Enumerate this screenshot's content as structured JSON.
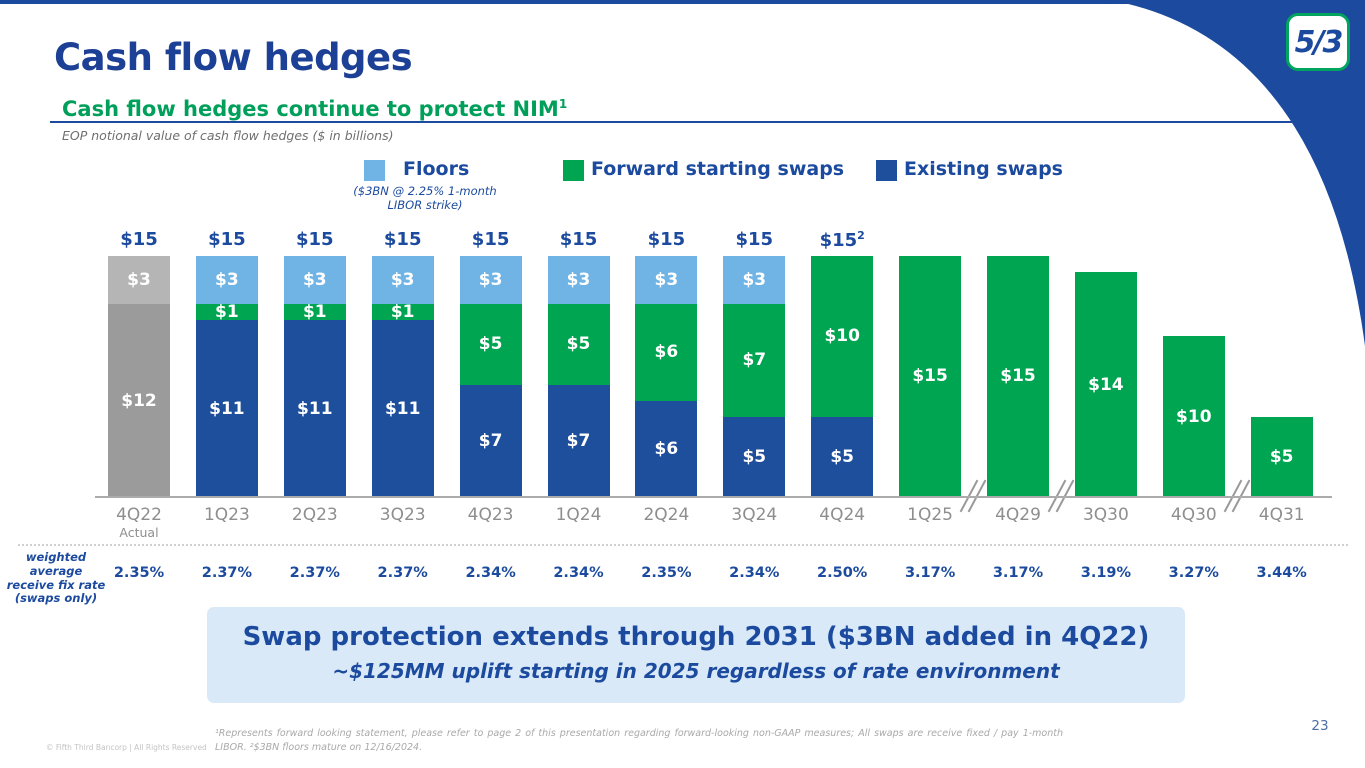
{
  "slide": {
    "page_number": "23",
    "copyright": "© Fifth Third Bancorp | All Rights Reserved"
  },
  "logo": {
    "text": "5/3"
  },
  "header": {
    "title": "Cash flow hedges",
    "subtitle": "Cash flow hedges continue to protect NIM",
    "subtitle_sup": "1",
    "note": "EOP notional value of cash flow hedges ($ in billions)"
  },
  "legend": {
    "items": [
      {
        "label": "Floors",
        "color": "#6fb4e5",
        "note": "($3BN @ 2.25% 1-month LIBOR strike)"
      },
      {
        "label": "Forward starting swaps",
        "color": "#00a551"
      },
      {
        "label": "Existing swaps",
        "color": "#1e4f9d"
      }
    ]
  },
  "chart_data": {
    "type": "bar",
    "stacked": true,
    "title": "EOP notional value of cash flow hedges ($ in billions)",
    "value_prefix": "$",
    "ylim": [
      0,
      15
    ],
    "grid": false,
    "legend_position": "top",
    "categories": [
      {
        "label": "4Q22",
        "sub": "Actual"
      },
      {
        "label": "1Q23"
      },
      {
        "label": "2Q23"
      },
      {
        "label": "3Q23"
      },
      {
        "label": "4Q23"
      },
      {
        "label": "1Q24"
      },
      {
        "label": "2Q24"
      },
      {
        "label": "3Q24"
      },
      {
        "label": "4Q24"
      },
      {
        "label": "1Q25"
      },
      {
        "label": "4Q29"
      },
      {
        "label": "3Q30"
      },
      {
        "label": "4Q30"
      },
      {
        "label": "4Q31"
      }
    ],
    "series": [
      {
        "name": "Existing swaps (4Q22 actual)",
        "color": "#9b9b9b",
        "values": [
          12,
          0,
          0,
          0,
          0,
          0,
          0,
          0,
          0,
          0,
          0,
          0,
          0,
          0
        ]
      },
      {
        "name": "Existing swaps",
        "color": "#1e4f9d",
        "values": [
          0,
          11,
          11,
          11,
          7,
          7,
          6,
          5,
          5,
          0,
          0,
          0,
          0,
          0
        ]
      },
      {
        "name": "Forward starting swaps",
        "color": "#00a551",
        "values": [
          0,
          1,
          1,
          1,
          5,
          5,
          6,
          7,
          10,
          15,
          15,
          14,
          10,
          5
        ]
      },
      {
        "name": "Floors (4Q22 actual)",
        "color": "#b5b5b5",
        "values": [
          3,
          0,
          0,
          0,
          0,
          0,
          0,
          0,
          0,
          0,
          0,
          0,
          0,
          0
        ]
      },
      {
        "name": "Floors",
        "color": "#6fb4e5",
        "values": [
          0,
          3,
          3,
          3,
          3,
          3,
          3,
          3,
          0,
          0,
          0,
          0,
          0,
          0
        ]
      }
    ],
    "totals": [
      {
        "text": "$15"
      },
      {
        "text": "$15"
      },
      {
        "text": "$15"
      },
      {
        "text": "$15"
      },
      {
        "text": "$15"
      },
      {
        "text": "$15"
      },
      {
        "text": "$15"
      },
      {
        "text": "$15"
      },
      {
        "text": "$15",
        "sup": "2"
      },
      null,
      null,
      null,
      null,
      null
    ],
    "axis_breaks_after": [
      "1Q25",
      "4Q29",
      "4Q30"
    ]
  },
  "rates": {
    "label": "weighted\naverage\nreceive fix rate\n(swaps only)",
    "values": [
      "2.35%",
      "2.37%",
      "2.37%",
      "2.37%",
      "2.34%",
      "2.34%",
      "2.35%",
      "2.34%",
      "2.50%",
      "3.17%",
      "3.17%",
      "3.19%",
      "3.27%",
      "3.44%"
    ]
  },
  "callout": {
    "heading": "Swap protection extends through 2031 ($3BN added in 4Q22)",
    "subtext": "~$125MM uplift starting in 2025 regardless of rate environment"
  },
  "footnote": "¹Represents forward looking statement, please refer to page 2 of this presentation regarding forward-looking non-GAAP measures; All swaps are receive fixed / pay 1-month LIBOR. ²$3BN floors mature on 12/16/2024.",
  "colors": {
    "accent_blue": "#1b4a9e",
    "accent_green": "#00a45e",
    "callout_bg": "#d9e9f8"
  }
}
